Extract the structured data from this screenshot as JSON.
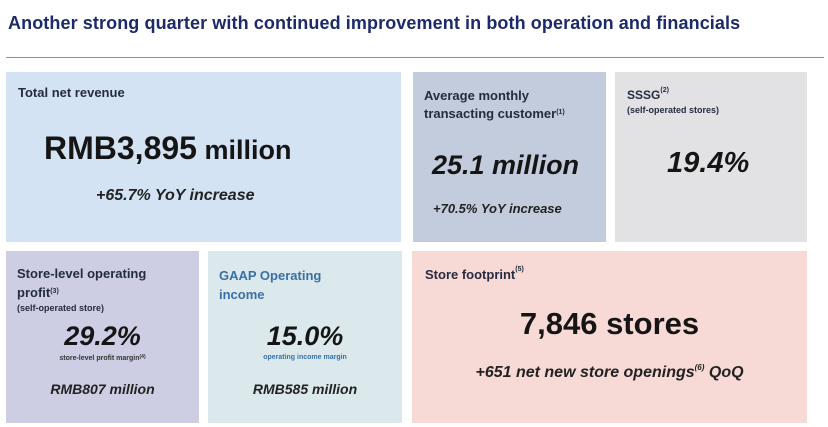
{
  "page": {
    "title": "Another strong quarter with continued improvement in both operation and financials"
  },
  "cards": {
    "revenue": {
      "label": "Total net revenue",
      "value_main": "RMB3,895",
      "value_unit": " million",
      "sub": "+65.7% YoY increase"
    },
    "customers": {
      "label_line1": "Average monthly",
      "label_line2": "transacting customer",
      "label_sup": "(1)",
      "value": "25.1 million",
      "sub": "+70.5% YoY increase"
    },
    "sssg": {
      "label": "SSSG",
      "label_sup": "(2)",
      "sublabel": "(self-operated stores)",
      "value": "19.4%"
    },
    "store_profit": {
      "label_line1": "Store-level operating",
      "label_line2": "profit",
      "label_sup": "(3)",
      "sublabel": "(self-operated store)",
      "value": "29.2%",
      "caption": "store-level profit margin",
      "caption_sup": "(4)",
      "amount": "RMB807 million"
    },
    "gaap": {
      "label_line1": "GAAP Operating",
      "label_line2": "income",
      "value": "15.0%",
      "caption": "operating income margin",
      "amount": "RMB585 million"
    },
    "footprint": {
      "label": "Store footprint",
      "label_sup": "(5)",
      "value": "7,846 stores",
      "sub_pre": "+651 net new store openings",
      "sub_sup": "(6)",
      "sub_post": " QoQ"
    }
  },
  "colors": {
    "title": "#1c2a6b",
    "revenue_bg": "#d3e3f3",
    "customers_bg": "#c3ccdc",
    "sssg_bg": "#e2e2e4",
    "store_profit_bg": "#cdcde3",
    "gaap_bg": "#dbe9ec",
    "gaap_accent": "#3a6fa6",
    "footprint_bg": "#f7d9d5"
  }
}
